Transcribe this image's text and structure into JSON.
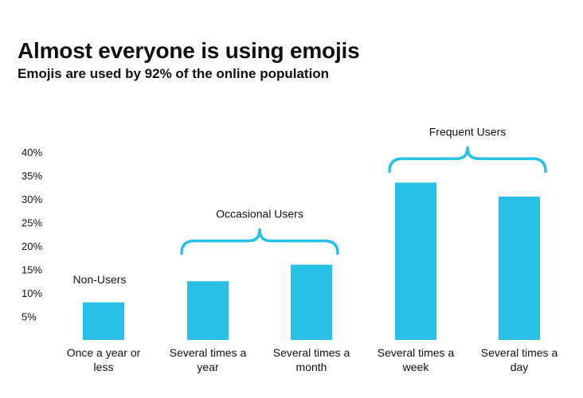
{
  "chart_data": {
    "type": "bar",
    "title": "Almost everyone is using emojis",
    "subtitle": "Emojis are used by 92% of the online population",
    "xlabel": "",
    "ylabel": "",
    "categories": [
      [
        "Once a year or",
        "less"
      ],
      [
        "Several times a",
        "year"
      ],
      [
        "Several times a",
        "month"
      ],
      [
        "Several times a",
        "week"
      ],
      [
        "Several times a",
        "day"
      ]
    ],
    "values": [
      8,
      12.5,
      16,
      33.5,
      30.5
    ],
    "ylim": [
      0,
      40
    ],
    "yticks": [
      5,
      10,
      15,
      20,
      25,
      30,
      35,
      40
    ],
    "ytick_labels": [
      "5%",
      "10%",
      "15%",
      "20%",
      "25%",
      "30%",
      "35%",
      "40%"
    ],
    "grid": false,
    "bar_color": "#29C0E8",
    "groups": [
      {
        "label": "Non-Users",
        "bar_indices": [
          0
        ],
        "brace": false
      },
      {
        "label": "Occasional Users",
        "bar_indices": [
          1,
          2
        ],
        "brace": true
      },
      {
        "label": "Frequent Users",
        "bar_indices": [
          3,
          4
        ],
        "brace": true
      }
    ]
  }
}
